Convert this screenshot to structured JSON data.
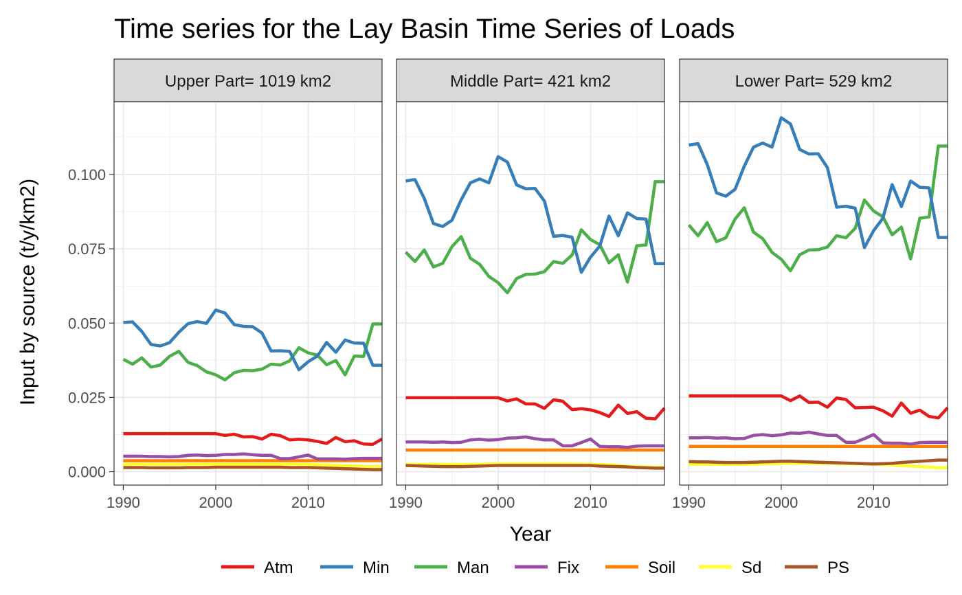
{
  "chart_data": {
    "type": "line",
    "title": "Time series for the Lay Basin Time Series of Loads",
    "xlabel": "Year",
    "ylabel": "Input by source (t/y/km2)",
    "xlim": [
      1989,
      2018
    ],
    "ylim": [
      -0.0045,
      0.1245
    ],
    "x_ticks": [
      1990,
      2000,
      2010
    ],
    "y_ticks": [
      0.0,
      0.025,
      0.05,
      0.075,
      0.1
    ],
    "y_tick_labels": [
      "0.000",
      "0.025",
      "0.050",
      "0.075",
      "0.100"
    ],
    "grid": true,
    "legend_position": "bottom",
    "years": [
      1990,
      1991,
      1992,
      1993,
      1994,
      1995,
      1996,
      1997,
      1998,
      1999,
      2000,
      2001,
      2002,
      2003,
      2004,
      2005,
      2006,
      2007,
      2008,
      2009,
      2010,
      2011,
      2012,
      2013,
      2014,
      2015,
      2016,
      2017,
      2018
    ],
    "legend": [
      {
        "name": "Atm",
        "color": "#e41a1c"
      },
      {
        "name": "Min",
        "color": "#377eb8"
      },
      {
        "name": "Man",
        "color": "#4daf4a"
      },
      {
        "name": "Fix",
        "color": "#984ea3"
      },
      {
        "name": "Soil",
        "color": "#ff7f00"
      },
      {
        "name": "Sd",
        "color": "#ffff33"
      },
      {
        "name": "PS",
        "color": "#a65628"
      }
    ],
    "panels": [
      {
        "label": "Upper Part= 1019 km2",
        "series": [
          {
            "name": "Sd",
            "values": [
              0.0025,
              0.0025,
              0.0025,
              0.0025,
              0.0025,
              0.0025,
              0.0025,
              0.0025,
              0.0025,
              0.0025,
              0.0025,
              0.0025,
              0.0025,
              0.0025,
              0.0025,
              0.0025,
              0.0025,
              0.0025,
              0.0025,
              0.0025,
              0.0024,
              0.0023,
              0.0022,
              0.0021,
              0.002,
              0.0019,
              0.0018,
              0.0017,
              0.0017
            ]
          },
          {
            "name": "PS",
            "values": [
              0.0014,
              0.0014,
              0.0014,
              0.0013,
              0.0013,
              0.0013,
              0.0013,
              0.0014,
              0.0014,
              0.0014,
              0.0015,
              0.0015,
              0.0015,
              0.0015,
              0.0015,
              0.0015,
              0.0015,
              0.0015,
              0.0014,
              0.0014,
              0.0014,
              0.0013,
              0.0012,
              0.0011,
              0.001,
              0.0009,
              0.0008,
              0.0007,
              0.0007
            ]
          },
          {
            "name": "Soil",
            "values": [
              0.0037,
              0.0037,
              0.0037,
              0.0037,
              0.0037,
              0.0037,
              0.0037,
              0.0037,
              0.0037,
              0.0037,
              0.0037,
              0.0037,
              0.0037,
              0.0037,
              0.0037,
              0.0037,
              0.0037,
              0.0037,
              0.0037,
              0.0037,
              0.0037,
              0.0037,
              0.0037,
              0.0037,
              0.0037,
              0.0037,
              0.0037,
              0.0037,
              0.0037
            ]
          },
          {
            "name": "Fix",
            "values": [
              0.0052,
              0.0052,
              0.0052,
              0.0051,
              0.0051,
              0.005,
              0.0051,
              0.0055,
              0.0056,
              0.0054,
              0.0055,
              0.0058,
              0.0058,
              0.006,
              0.0057,
              0.0055,
              0.0055,
              0.0044,
              0.0044,
              0.005,
              0.0056,
              0.0043,
              0.0043,
              0.0043,
              0.0042,
              0.0044,
              0.0045,
              0.0045,
              0.0045
            ]
          },
          {
            "name": "Atm",
            "values": [
              0.0128,
              0.0128,
              0.0128,
              0.0128,
              0.0128,
              0.0128,
              0.0128,
              0.0128,
              0.0128,
              0.0128,
              0.0128,
              0.0122,
              0.0126,
              0.0117,
              0.0118,
              0.011,
              0.0126,
              0.0121,
              0.0107,
              0.0109,
              0.0107,
              0.0102,
              0.0095,
              0.0115,
              0.0101,
              0.0104,
              0.0093,
              0.0092,
              0.011
            ]
          },
          {
            "name": "Man",
            "values": [
              0.0378,
              0.0362,
              0.0383,
              0.0352,
              0.0359,
              0.0388,
              0.0405,
              0.0368,
              0.0357,
              0.0336,
              0.0326,
              0.0309,
              0.0333,
              0.0341,
              0.034,
              0.0345,
              0.0362,
              0.0359,
              0.0373,
              0.0417,
              0.04,
              0.0392,
              0.036,
              0.0374,
              0.0326,
              0.0389,
              0.0388,
              0.0497,
              0.0497
            ]
          },
          {
            "name": "Min",
            "values": [
              0.0502,
              0.0504,
              0.0472,
              0.0428,
              0.0423,
              0.0434,
              0.0469,
              0.0498,
              0.0505,
              0.0499,
              0.0544,
              0.0534,
              0.0495,
              0.0489,
              0.0488,
              0.0467,
              0.0406,
              0.0407,
              0.0405,
              0.0343,
              0.037,
              0.0389,
              0.0435,
              0.0402,
              0.0443,
              0.0433,
              0.0432,
              0.0358,
              0.0358
            ]
          }
        ]
      },
      {
        "label": "Middle Part= 421 km2",
        "series": [
          {
            "name": "Sd",
            "values": [
              0.0025,
              0.0025,
              0.0025,
              0.0025,
              0.0025,
              0.0025,
              0.0025,
              0.0025,
              0.0025,
              0.0026,
              0.0027,
              0.0027,
              0.0027,
              0.0027,
              0.0027,
              0.0027,
              0.0027,
              0.0027,
              0.0026,
              0.0026,
              0.0025,
              0.0024,
              0.0023,
              0.0021,
              0.0019,
              0.0017,
              0.0016,
              0.0015,
              0.0015
            ]
          },
          {
            "name": "PS",
            "values": [
              0.0021,
              0.002,
              0.0019,
              0.0018,
              0.0017,
              0.0017,
              0.0017,
              0.0018,
              0.0019,
              0.002,
              0.0021,
              0.0021,
              0.0021,
              0.0021,
              0.0021,
              0.0021,
              0.0021,
              0.0021,
              0.0021,
              0.0021,
              0.0021,
              0.0019,
              0.0018,
              0.0017,
              0.0016,
              0.0014,
              0.0013,
              0.0012,
              0.0012
            ]
          },
          {
            "name": "Soil",
            "values": [
              0.0073,
              0.0073,
              0.0073,
              0.0073,
              0.0073,
              0.0073,
              0.0073,
              0.0073,
              0.0073,
              0.0073,
              0.0073,
              0.0073,
              0.0073,
              0.0073,
              0.0073,
              0.0073,
              0.0073,
              0.0073,
              0.0073,
              0.0073,
              0.0073,
              0.0073,
              0.0073,
              0.0073,
              0.0073,
              0.0073,
              0.0073,
              0.0073,
              0.0073
            ]
          },
          {
            "name": "Fix",
            "values": [
              0.01,
              0.01,
              0.01,
              0.0099,
              0.01,
              0.0098,
              0.0099,
              0.0107,
              0.0109,
              0.0106,
              0.0108,
              0.0113,
              0.0114,
              0.0117,
              0.0111,
              0.0107,
              0.0107,
              0.0087,
              0.0087,
              0.0098,
              0.011,
              0.0085,
              0.0084,
              0.0084,
              0.0082,
              0.0086,
              0.0087,
              0.0087,
              0.0087
            ]
          },
          {
            "name": "Atm",
            "values": [
              0.0249,
              0.0249,
              0.0249,
              0.0249,
              0.0249,
              0.0249,
              0.0249,
              0.0249,
              0.0249,
              0.0249,
              0.0249,
              0.0238,
              0.0245,
              0.0228,
              0.0228,
              0.0213,
              0.0242,
              0.0237,
              0.0209,
              0.0212,
              0.0208,
              0.0199,
              0.0186,
              0.0224,
              0.0196,
              0.0202,
              0.018,
              0.0178,
              0.0214
            ]
          },
          {
            "name": "Man",
            "values": [
              0.0739,
              0.0707,
              0.0746,
              0.0689,
              0.0701,
              0.0757,
              0.0791,
              0.0718,
              0.0698,
              0.0657,
              0.0636,
              0.0602,
              0.065,
              0.0664,
              0.0665,
              0.0673,
              0.0707,
              0.0701,
              0.0729,
              0.0814,
              0.0781,
              0.0764,
              0.0703,
              0.073,
              0.0638,
              0.076,
              0.0763,
              0.0976,
              0.0976
            ]
          },
          {
            "name": "Min",
            "values": [
              0.0978,
              0.0983,
              0.092,
              0.0835,
              0.0825,
              0.0846,
              0.0915,
              0.0972,
              0.0985,
              0.0972,
              0.106,
              0.1042,
              0.0965,
              0.0952,
              0.0953,
              0.0911,
              0.0792,
              0.0795,
              0.0789,
              0.0671,
              0.0722,
              0.0759,
              0.086,
              0.0794,
              0.0871,
              0.0852,
              0.085,
              0.07,
              0.07
            ]
          }
        ]
      },
      {
        "label": "Lower Part= 529 km2",
        "series": [
          {
            "name": "Sd",
            "values": [
              0.0025,
              0.0025,
              0.0025,
              0.0025,
              0.0025,
              0.0025,
              0.0025,
              0.0025,
              0.0026,
              0.0027,
              0.0028,
              0.0028,
              0.0028,
              0.0028,
              0.0028,
              0.0028,
              0.0027,
              0.0027,
              0.0026,
              0.0026,
              0.0025,
              0.0024,
              0.0023,
              0.0021,
              0.0019,
              0.0017,
              0.0015,
              0.0013,
              0.0013
            ]
          },
          {
            "name": "PS",
            "values": [
              0.0034,
              0.0033,
              0.0033,
              0.0032,
              0.0031,
              0.0031,
              0.0031,
              0.0032,
              0.0033,
              0.0034,
              0.0035,
              0.0035,
              0.0034,
              0.0033,
              0.0032,
              0.0031,
              0.003,
              0.0029,
              0.0028,
              0.0027,
              0.0026,
              0.0027,
              0.0028,
              0.0031,
              0.0033,
              0.0035,
              0.0037,
              0.0039,
              0.0039
            ]
          },
          {
            "name": "Soil",
            "values": [
              0.0085,
              0.0085,
              0.0085,
              0.0085,
              0.0085,
              0.0085,
              0.0085,
              0.0085,
              0.0085,
              0.0085,
              0.0085,
              0.0085,
              0.0085,
              0.0085,
              0.0085,
              0.0085,
              0.0085,
              0.0085,
              0.0085,
              0.0085,
              0.0085,
              0.0085,
              0.0085,
              0.0085,
              0.0085,
              0.0085,
              0.0085,
              0.0085,
              0.0085
            ]
          },
          {
            "name": "Fix",
            "values": [
              0.0114,
              0.0114,
              0.0115,
              0.0113,
              0.0114,
              0.0111,
              0.0112,
              0.0122,
              0.0125,
              0.0121,
              0.0124,
              0.013,
              0.0129,
              0.0133,
              0.0127,
              0.0122,
              0.0122,
              0.0099,
              0.0099,
              0.0111,
              0.0125,
              0.0097,
              0.0096,
              0.0096,
              0.0093,
              0.0098,
              0.0099,
              0.0099,
              0.0099
            ]
          },
          {
            "name": "Atm",
            "values": [
              0.0255,
              0.0255,
              0.0255,
              0.0255,
              0.0255,
              0.0255,
              0.0255,
              0.0255,
              0.0255,
              0.0255,
              0.0255,
              0.0239,
              0.0255,
              0.0233,
              0.0234,
              0.0217,
              0.0248,
              0.0243,
              0.0215,
              0.0216,
              0.0217,
              0.0205,
              0.0187,
              0.0231,
              0.0197,
              0.0207,
              0.0186,
              0.0181,
              0.0215
            ]
          },
          {
            "name": "Man",
            "values": [
              0.083,
              0.0794,
              0.0838,
              0.0774,
              0.0787,
              0.085,
              0.0888,
              0.0806,
              0.0784,
              0.0738,
              0.0715,
              0.0676,
              0.073,
              0.0746,
              0.0747,
              0.0756,
              0.0794,
              0.0787,
              0.0819,
              0.0914,
              0.0877,
              0.0858,
              0.0797,
              0.0823,
              0.0716,
              0.0853,
              0.0857,
              0.1096,
              0.1096
            ]
          },
          {
            "name": "Min",
            "values": [
              0.1099,
              0.1104,
              0.1033,
              0.0938,
              0.0927,
              0.095,
              0.1028,
              0.1092,
              0.1106,
              0.1092,
              0.1191,
              0.117,
              0.1084,
              0.1069,
              0.107,
              0.1023,
              0.089,
              0.0893,
              0.0887,
              0.0754,
              0.0811,
              0.0853,
              0.0966,
              0.0892,
              0.0978,
              0.0957,
              0.0955,
              0.0788,
              0.0788
            ]
          }
        ]
      }
    ]
  }
}
